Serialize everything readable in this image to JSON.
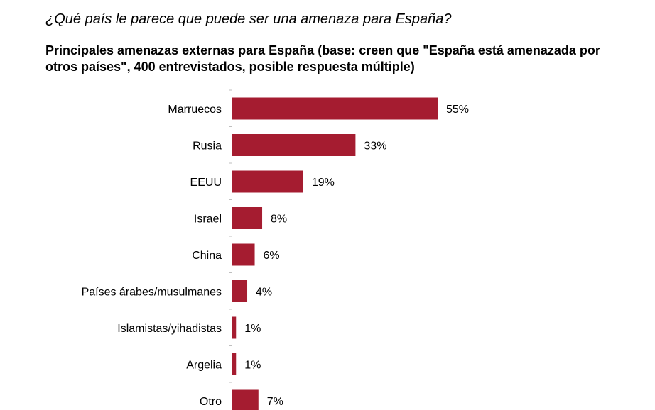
{
  "header": {
    "question": "¿Qué país le parece que puede ser una amenaza para España?",
    "subtitle": "Principales amenazas externas para España (base: creen que \"España está amenazada por otros países\", 400 entrevistados, posible respuesta múltiple)"
  },
  "chart_data": {
    "type": "bar",
    "orientation": "horizontal",
    "categories": [
      "Marruecos",
      "Rusia",
      "EEUU",
      "Israel",
      "China",
      "Países árabes/musulmanes",
      "Islamistas/yihadistas",
      "Argelia",
      "Otro"
    ],
    "values": [
      55,
      33,
      19,
      8,
      6,
      4,
      1,
      1,
      7
    ],
    "value_labels": [
      "55%",
      "33%",
      "19%",
      "8%",
      "6%",
      "4%",
      "1%",
      "1%",
      "7%"
    ],
    "unit": "%",
    "bar_color": "#a51c30",
    "xlim": [
      0,
      60
    ],
    "grid": false,
    "legend": "none"
  }
}
